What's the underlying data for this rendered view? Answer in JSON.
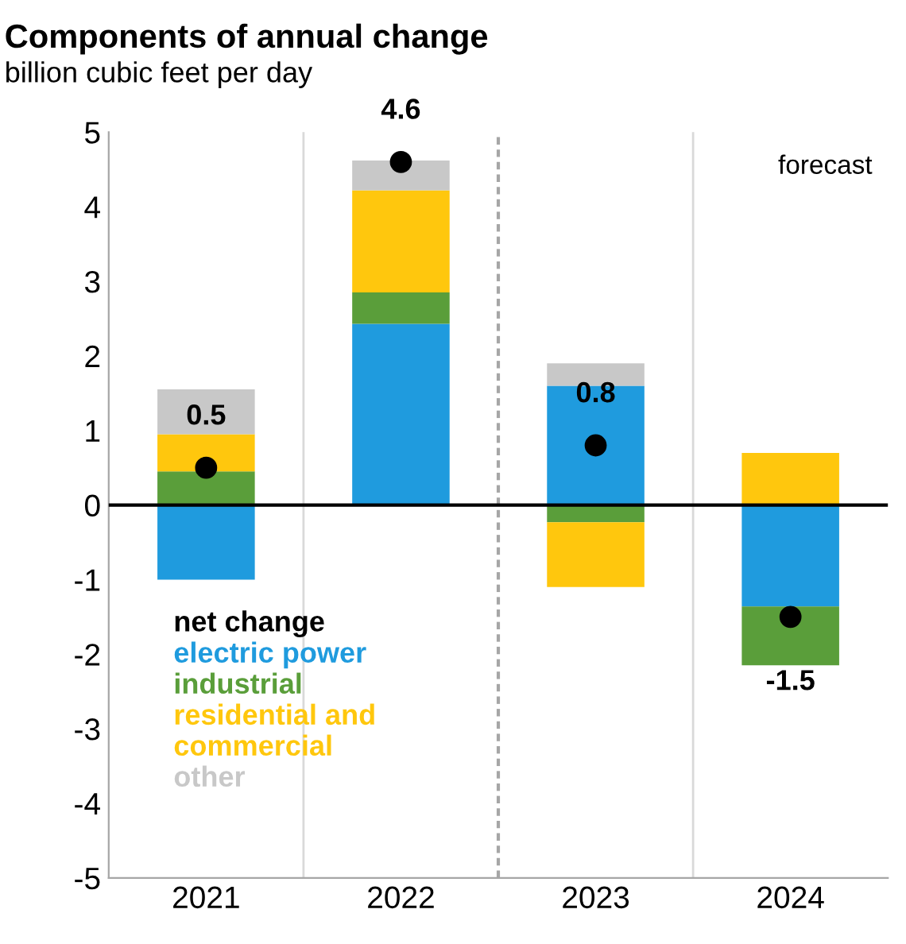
{
  "chart_data": {
    "type": "bar",
    "title": "Components of annual change",
    "subtitle": "billion cubic feet per day",
    "categories": [
      "2021",
      "2022",
      "2023",
      "2024"
    ],
    "stacked": true,
    "series": [
      {
        "name": "net change",
        "type": "scatter",
        "color": "#000000",
        "values": [
          0.5,
          4.6,
          0.8,
          -1.5
        ],
        "value_labels": [
          "0.5",
          "4.6",
          "0.8",
          "-1.5"
        ]
      },
      {
        "name": "electric power",
        "color": "#1f9bde",
        "values": [
          -1.0,
          2.43,
          1.6,
          -1.36
        ]
      },
      {
        "name": "industrial",
        "color": "#5a9e3a",
        "values": [
          0.45,
          0.42,
          -0.23,
          -0.79
        ]
      },
      {
        "name": "residential and\ncommercial",
        "color": "#ffc70d",
        "values": [
          0.5,
          1.37,
          -0.87,
          0.7
        ]
      },
      {
        "name": "other",
        "color": "#c8c8c8",
        "values": [
          0.6,
          0.4,
          0.3,
          null
        ]
      }
    ],
    "ylim": [
      -5,
      5
    ],
    "yticks": [
      -5,
      -4,
      -3,
      -2,
      -1,
      0,
      1,
      2,
      3,
      4,
      5
    ],
    "annotations": [
      "forecast"
    ],
    "grid": "x",
    "legend": "bottom left",
    "marker": "circle"
  }
}
